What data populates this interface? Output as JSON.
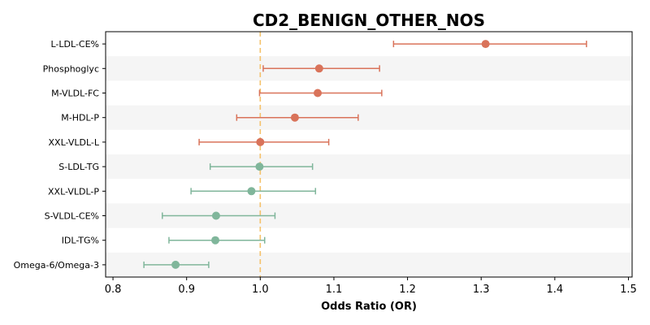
{
  "chart_data": {
    "type": "forest",
    "title": "CD2_BENIGN_OTHER_NOS",
    "xlabel": "Odds Ratio (OR)",
    "ylabel": "",
    "xlim": [
      0.79,
      1.505
    ],
    "xticks": [
      "0.8",
      "0.9",
      "1.0",
      "1.1",
      "1.2",
      "1.3",
      "1.4",
      "1.5"
    ],
    "reference_line": 1.0,
    "colors": {
      "increased": "#d9735a",
      "decreased": "#80b69b",
      "reference": "#f5c26b",
      "band": "#f5f5f5"
    },
    "rows": [
      {
        "label": "L-LDL-CE%",
        "or": 1.306,
        "ci_low": 1.181,
        "ci_high": 1.443,
        "direction": "increased"
      },
      {
        "label": "Phosphoglyc",
        "or": 1.08,
        "ci_low": 1.004,
        "ci_high": 1.162,
        "direction": "increased"
      },
      {
        "label": "M-VLDL-FC",
        "or": 1.078,
        "ci_low": 0.999,
        "ci_high": 1.165,
        "direction": "increased"
      },
      {
        "label": "M-HDL-P",
        "or": 1.047,
        "ci_low": 0.968,
        "ci_high": 1.133,
        "direction": "increased"
      },
      {
        "label": "XXL-VLDL-L",
        "or": 1.0,
        "ci_low": 0.917,
        "ci_high": 1.093,
        "direction": "increased"
      },
      {
        "label": "S-LDL-TG",
        "or": 0.999,
        "ci_low": 0.932,
        "ci_high": 1.071,
        "direction": "decreased"
      },
      {
        "label": "XXL-VLDL-P",
        "or": 0.988,
        "ci_low": 0.906,
        "ci_high": 1.075,
        "direction": "decreased"
      },
      {
        "label": "S-VLDL-CE%",
        "or": 0.94,
        "ci_low": 0.867,
        "ci_high": 1.02,
        "direction": "decreased"
      },
      {
        "label": "IDL-TG%",
        "or": 0.939,
        "ci_low": 0.876,
        "ci_high": 1.006,
        "direction": "decreased"
      },
      {
        "label": "Omega-6/Omega-3",
        "or": 0.885,
        "ci_low": 0.842,
        "ci_high": 0.93,
        "direction": "decreased"
      }
    ]
  }
}
